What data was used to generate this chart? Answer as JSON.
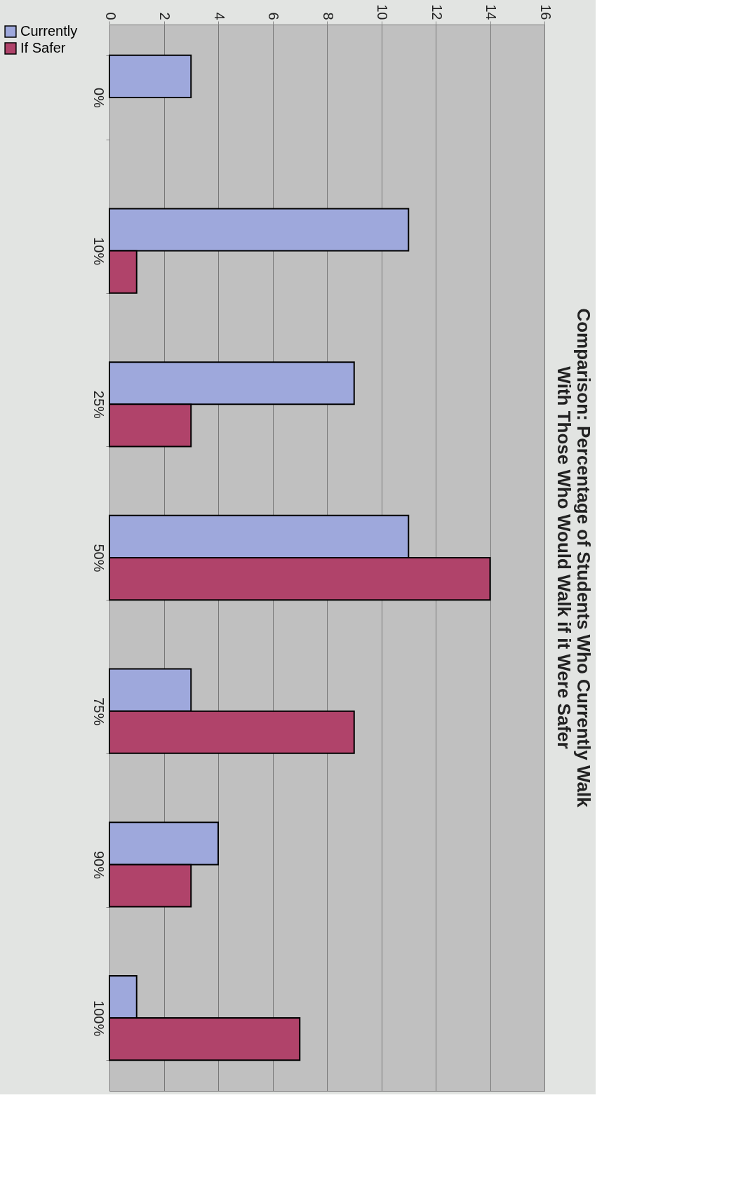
{
  "chart_data": {
    "type": "bar",
    "orientation": "horizontal",
    "title": "Comparison: Percentage of Students Who Currently Walk\nWith Those Who Would Walk if it Were Safer",
    "categories": [
      "0%",
      "10%",
      "25%",
      "50%",
      "75%",
      "90%",
      "100%"
    ],
    "series": [
      {
        "name": "Currently",
        "color": "#9ea8dc",
        "values": [
          3,
          11,
          9,
          11,
          3,
          4,
          1
        ]
      },
      {
        "name": "If Safer",
        "color": "#b0436a",
        "values": [
          null,
          1,
          3,
          14,
          9,
          3,
          7
        ]
      }
    ],
    "xlim": [
      0,
      16
    ],
    "xticks": [
      0,
      2,
      4,
      6,
      8,
      10,
      12,
      14,
      16
    ],
    "grid": "x",
    "legend": "left"
  }
}
